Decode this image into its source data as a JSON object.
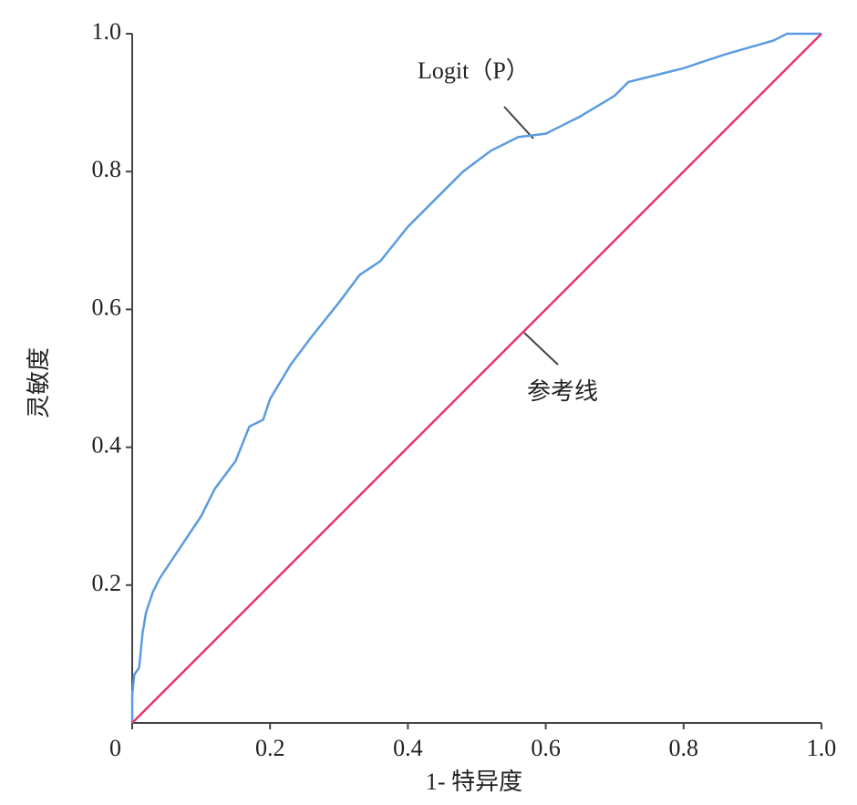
{
  "chart_data": {
    "type": "line",
    "x_label": "1- 特异度",
    "y_label": "灵敏度",
    "xlim": [
      0,
      1
    ],
    "ylim": [
      0,
      1
    ],
    "xticks": [
      0,
      0.2,
      0.4,
      0.6,
      0.8,
      {
        "value": 1,
        "label": "1.0"
      }
    ],
    "yticks": [
      0.2,
      0.4,
      0.6,
      0.8,
      {
        "value": 1,
        "label": "1.0"
      }
    ],
    "grid": false,
    "series": [
      {
        "name": "Logit（P）",
        "color": "#5b9be0",
        "x": [
          0,
          0,
          0.003,
          0.01,
          0.015,
          0.02,
          0.03,
          0.04,
          0.06,
          0.08,
          0.1,
          0.12,
          0.15,
          0.17,
          0.19,
          0.2,
          0.23,
          0.26,
          0.3,
          0.33,
          0.36,
          0.4,
          0.44,
          0.48,
          0.52,
          0.56,
          0.6,
          0.62,
          0.65,
          0.7,
          0.72,
          0.76,
          0.8,
          0.86,
          0.93,
          0.95,
          1
        ],
        "values": [
          0,
          0.04,
          0.07,
          0.08,
          0.13,
          0.16,
          0.19,
          0.21,
          0.24,
          0.27,
          0.3,
          0.34,
          0.38,
          0.43,
          0.44,
          0.47,
          0.52,
          0.56,
          0.61,
          0.65,
          0.67,
          0.72,
          0.76,
          0.8,
          0.83,
          0.85,
          0.855,
          0.865,
          0.88,
          0.91,
          0.93,
          0.94,
          0.95,
          0.97,
          0.99,
          1,
          1
        ]
      },
      {
        "name": "参考线",
        "color": "#e8336b",
        "x": [
          0,
          1
        ],
        "values": [
          0,
          1
        ]
      }
    ]
  }
}
